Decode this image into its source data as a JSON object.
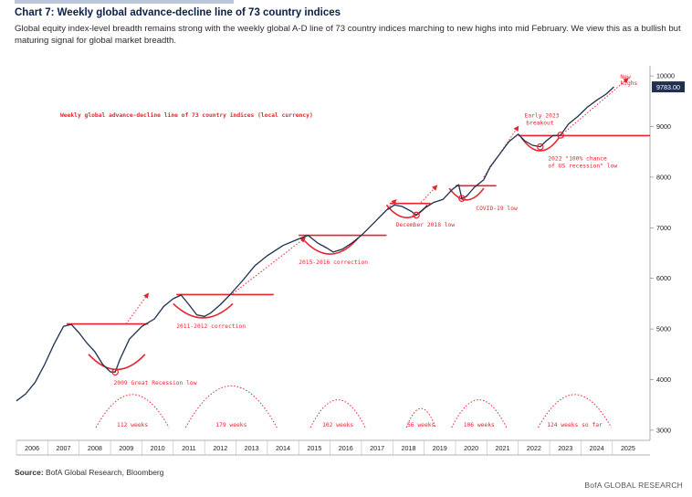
{
  "title": "Chart 7: Weekly global advance-decline line of 73 country indices",
  "subtitle": "Global equity index-level breadth remains strong with the weekly global A-D line of 73 country indices marching to new highs into mid February. We view this as a bullish but maturing signal for global market breadth.",
  "source_label": "Source:",
  "source_text": "BofA Global Research, Bloomberg",
  "credit": "BofA GLOBAL RESEARCH",
  "chart_data": {
    "type": "line",
    "title": "Weekly global advance-decline line of 73 country indices (local currency)",
    "x_categories": [
      "2006",
      "2007",
      "2008",
      "2009",
      "2010",
      "2011",
      "2012",
      "2013",
      "2014",
      "2015",
      "2016",
      "2017",
      "2018",
      "2019",
      "2020",
      "2021",
      "2022",
      "2023",
      "2024",
      "2025"
    ],
    "y_ticks": [
      3000,
      4000,
      5000,
      6000,
      7000,
      8000,
      9000,
      10000
    ],
    "ylim": [
      2800,
      10200
    ],
    "grid": false,
    "last_value_label": "9783.00",
    "series": [
      {
        "values": [
          [
            2006.0,
            3580
          ],
          [
            2006.3,
            3720
          ],
          [
            2006.6,
            3950
          ],
          [
            2006.9,
            4300
          ],
          [
            2007.2,
            4700
          ],
          [
            2007.5,
            5050
          ],
          [
            2007.75,
            5090
          ],
          [
            2008.0,
            4920
          ],
          [
            2008.25,
            4720
          ],
          [
            2008.5,
            4550
          ],
          [
            2008.75,
            4300
          ],
          [
            2009.0,
            4150
          ],
          [
            2009.15,
            4150
          ],
          [
            2009.3,
            4400
          ],
          [
            2009.6,
            4800
          ],
          [
            2010.0,
            5050
          ],
          [
            2010.4,
            5200
          ],
          [
            2010.7,
            5450
          ],
          [
            2011.0,
            5600
          ],
          [
            2011.25,
            5670
          ],
          [
            2011.5,
            5480
          ],
          [
            2011.75,
            5280
          ],
          [
            2012.0,
            5250
          ],
          [
            2012.2,
            5320
          ],
          [
            2012.5,
            5480
          ],
          [
            2012.8,
            5670
          ],
          [
            2013.2,
            5950
          ],
          [
            2013.6,
            6250
          ],
          [
            2014.0,
            6450
          ],
          [
            2014.5,
            6650
          ],
          [
            2015.0,
            6780
          ],
          [
            2015.3,
            6850
          ],
          [
            2015.6,
            6700
          ],
          [
            2015.9,
            6600
          ],
          [
            2016.1,
            6520
          ],
          [
            2016.4,
            6580
          ],
          [
            2016.7,
            6700
          ],
          [
            2017.0,
            6850
          ],
          [
            2017.4,
            7100
          ],
          [
            2017.8,
            7350
          ],
          [
            2018.05,
            7450
          ],
          [
            2018.3,
            7420
          ],
          [
            2018.6,
            7320
          ],
          [
            2018.75,
            7250
          ],
          [
            2019.0,
            7380
          ],
          [
            2019.3,
            7500
          ],
          [
            2019.6,
            7560
          ],
          [
            2019.9,
            7760
          ],
          [
            2020.1,
            7850
          ],
          [
            2020.2,
            7580
          ],
          [
            2020.35,
            7620
          ],
          [
            2020.6,
            7800
          ],
          [
            2020.9,
            7950
          ],
          [
            2021.1,
            8200
          ],
          [
            2021.4,
            8450
          ],
          [
            2021.7,
            8700
          ],
          [
            2022.0,
            8850
          ],
          [
            2022.2,
            8720
          ],
          [
            2022.45,
            8630
          ],
          [
            2022.7,
            8600
          ],
          [
            2022.9,
            8720
          ],
          [
            2023.1,
            8820
          ],
          [
            2023.35,
            8830
          ],
          [
            2023.6,
            9050
          ],
          [
            2023.9,
            9200
          ],
          [
            2024.2,
            9380
          ],
          [
            2024.5,
            9520
          ],
          [
            2024.8,
            9640
          ],
          [
            2025.05,
            9783
          ]
        ]
      }
    ],
    "resistance_lines": [
      {
        "level": 5100,
        "from": 2007.6,
        "to": 2010.2
      },
      {
        "level": 5680,
        "from": 2011.1,
        "to": 2014.2
      },
      {
        "level": 6850,
        "from": 2015.0,
        "to": 2017.8
      },
      {
        "level": 7480,
        "from": 2017.9,
        "to": 2019.2
      },
      {
        "level": 7830,
        "from": 2020.0,
        "to": 2021.3
      },
      {
        "level": 8820,
        "from": 2022.0,
        "to": 2026.2
      }
    ],
    "annotations": [
      {
        "text": "2009 Great Recession low",
        "x": 2009.1,
        "y": 3900
      },
      {
        "text": "2011-2012 correction",
        "x": 2011.1,
        "y": 5020
      },
      {
        "text": "2015-2016 correction",
        "x": 2015.0,
        "y": 6280
      },
      {
        "text": "December 2018 low",
        "x": 2018.1,
        "y": 7020
      },
      {
        "text": "COVID-19 low",
        "x": 2020.65,
        "y": 7350
      },
      {
        "text": "Early 2023",
        "x": 2022.2,
        "y": 9180
      },
      {
        "text": "breakout",
        "x": 2022.25,
        "y": 9040
      },
      {
        "text": "2022 \"100% chance",
        "x": 2022.95,
        "y": 8330
      },
      {
        "text": "of US recession\" low",
        "x": 2022.95,
        "y": 8190
      },
      {
        "text": "New",
        "x": 2025.25,
        "y": 9950
      },
      {
        "text": "highs",
        "x": 2025.25,
        "y": 9820
      }
    ],
    "durations": [
      {
        "label": "112 weeks",
        "x": 2009.7
      },
      {
        "label": "179 weeks",
        "x": 2012.85
      },
      {
        "label": "102 weeks",
        "x": 2016.25
      },
      {
        "label": "56 weeks",
        "x": 2018.9
      },
      {
        "label": "106 weeks",
        "x": 2020.75
      },
      {
        "label": "124 weeks so far",
        "x": 2023.8
      }
    ]
  }
}
